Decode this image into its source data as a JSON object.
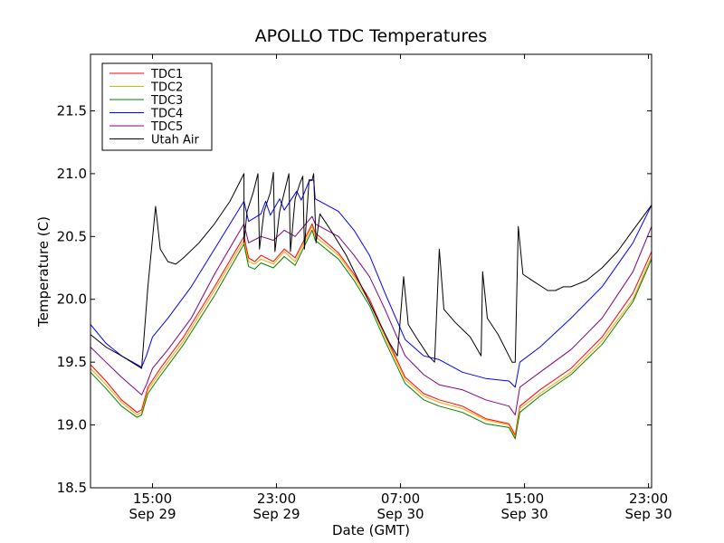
{
  "chart_data": {
    "type": "line",
    "title": "APOLLO TDC Temperatures",
    "xlabel": "Date (GMT)",
    "ylabel": "Temperature (C)",
    "x_unit": "hours since Sep 29 00:00 GMT",
    "xlim": [
      11,
      47.2
    ],
    "ylim": [
      18.5,
      21.95
    ],
    "grid": false,
    "legend_position": "top-left",
    "xticks": [
      {
        "value": 15,
        "label": "15:00",
        "sublabel": "Sep 29"
      },
      {
        "value": 23,
        "label": "23:00",
        "sublabel": "Sep 29"
      },
      {
        "value": 31,
        "label": "07:00",
        "sublabel": "Sep 30"
      },
      {
        "value": 39,
        "label": "15:00",
        "sublabel": "Sep 30"
      },
      {
        "value": 47,
        "label": "23:00",
        "sublabel": "Sep 30"
      }
    ],
    "yticks": [
      {
        "value": 18.5,
        "label": "18.5"
      },
      {
        "value": 19.0,
        "label": "19.0"
      },
      {
        "value": 19.5,
        "label": "19.5"
      },
      {
        "value": 20.0,
        "label": "20.0"
      },
      {
        "value": 20.5,
        "label": "20.5"
      },
      {
        "value": 21.0,
        "label": "21.0"
      },
      {
        "value": 21.5,
        "label": "21.5"
      }
    ],
    "series": [
      {
        "name": "TDC1",
        "color": "#ff0000",
        "points": [
          [
            11,
            19.48
          ],
          [
            12,
            19.35
          ],
          [
            13,
            19.2
          ],
          [
            14,
            19.1
          ],
          [
            14.3,
            19.12
          ],
          [
            14.7,
            19.3
          ],
          [
            15.5,
            19.45
          ],
          [
            17,
            19.7
          ],
          [
            19,
            20.1
          ],
          [
            20.9,
            20.5
          ],
          [
            21.2,
            20.33
          ],
          [
            21.6,
            20.3
          ],
          [
            22,
            20.35
          ],
          [
            22.8,
            20.3
          ],
          [
            23.5,
            20.4
          ],
          [
            24.2,
            20.33
          ],
          [
            25.3,
            20.6
          ],
          [
            25.5,
            20.53
          ],
          [
            27,
            20.37
          ],
          [
            28,
            20.2
          ],
          [
            29,
            20.0
          ],
          [
            30,
            19.72
          ],
          [
            31.3,
            19.38
          ],
          [
            32.5,
            19.25
          ],
          [
            33.5,
            19.2
          ],
          [
            35,
            19.15
          ],
          [
            36.5,
            19.05
          ],
          [
            38,
            19.01
          ],
          [
            38.4,
            18.92
          ],
          [
            38.7,
            19.15
          ],
          [
            40,
            19.28
          ],
          [
            42,
            19.45
          ],
          [
            44,
            19.7
          ],
          [
            46,
            20.05
          ],
          [
            47.2,
            20.38
          ]
        ]
      },
      {
        "name": "TDC2",
        "color": "#ffa500",
        "points": [
          [
            11,
            19.45
          ],
          [
            12,
            19.32
          ],
          [
            13,
            19.18
          ],
          [
            14,
            19.08
          ],
          [
            14.3,
            19.1
          ],
          [
            14.7,
            19.28
          ],
          [
            15.5,
            19.42
          ],
          [
            17,
            19.67
          ],
          [
            19,
            20.07
          ],
          [
            20.9,
            20.47
          ],
          [
            21.2,
            20.3
          ],
          [
            21.6,
            20.28
          ],
          [
            22,
            20.32
          ],
          [
            22.8,
            20.28
          ],
          [
            23.5,
            20.38
          ],
          [
            24.2,
            20.3
          ],
          [
            25.3,
            20.58
          ],
          [
            25.5,
            20.5
          ],
          [
            27,
            20.35
          ],
          [
            28,
            20.18
          ],
          [
            29,
            19.98
          ],
          [
            30,
            19.7
          ],
          [
            31.3,
            19.36
          ],
          [
            32.5,
            19.23
          ],
          [
            33.5,
            19.18
          ],
          [
            35,
            19.13
          ],
          [
            36.5,
            19.04
          ],
          [
            38,
            19.0
          ],
          [
            38.4,
            18.9
          ],
          [
            38.7,
            19.13
          ],
          [
            40,
            19.25
          ],
          [
            42,
            19.42
          ],
          [
            44,
            19.67
          ],
          [
            46,
            20.0
          ],
          [
            47.2,
            20.34
          ]
        ]
      },
      {
        "name": "TDC3",
        "color": "#008000",
        "points": [
          [
            11,
            19.42
          ],
          [
            12,
            19.29
          ],
          [
            13,
            19.15
          ],
          [
            14,
            19.06
          ],
          [
            14.3,
            19.08
          ],
          [
            14.7,
            19.25
          ],
          [
            15.5,
            19.39
          ],
          [
            17,
            19.64
          ],
          [
            19,
            20.03
          ],
          [
            20.9,
            20.44
          ],
          [
            21.2,
            20.26
          ],
          [
            21.6,
            20.24
          ],
          [
            22,
            20.29
          ],
          [
            22.8,
            20.25
          ],
          [
            23.5,
            20.34
          ],
          [
            24.2,
            20.27
          ],
          [
            25.3,
            20.55
          ],
          [
            25.5,
            20.47
          ],
          [
            27,
            20.32
          ],
          [
            28,
            20.15
          ],
          [
            29,
            19.95
          ],
          [
            30,
            19.67
          ],
          [
            31.3,
            19.33
          ],
          [
            32.5,
            19.2
          ],
          [
            33.5,
            19.15
          ],
          [
            35,
            19.1
          ],
          [
            36.5,
            19.01
          ],
          [
            38,
            18.98
          ],
          [
            38.4,
            18.89
          ],
          [
            38.7,
            19.1
          ],
          [
            40,
            19.23
          ],
          [
            42,
            19.4
          ],
          [
            44,
            19.64
          ],
          [
            46,
            19.98
          ],
          [
            47.2,
            20.32
          ]
        ]
      },
      {
        "name": "TDC4",
        "color": "#0000ff",
        "points": [
          [
            11,
            19.8
          ],
          [
            12,
            19.65
          ],
          [
            13,
            19.55
          ],
          [
            14.3,
            19.46
          ],
          [
            14.6,
            19.55
          ],
          [
            15,
            19.7
          ],
          [
            16,
            19.85
          ],
          [
            17.5,
            20.1
          ],
          [
            19,
            20.4
          ],
          [
            20.9,
            20.78
          ],
          [
            21.2,
            20.62
          ],
          [
            22,
            20.68
          ],
          [
            22.3,
            20.78
          ],
          [
            22.6,
            20.67
          ],
          [
            23.2,
            20.8
          ],
          [
            23.5,
            20.71
          ],
          [
            24.3,
            20.86
          ],
          [
            24.6,
            20.79
          ],
          [
            25.1,
            20.94
          ],
          [
            25.4,
            20.95
          ],
          [
            25.5,
            20.8
          ],
          [
            27,
            20.7
          ],
          [
            28,
            20.55
          ],
          [
            29,
            20.35
          ],
          [
            30,
            20.05
          ],
          [
            31.3,
            19.68
          ],
          [
            32.5,
            19.55
          ],
          [
            33.5,
            19.52
          ],
          [
            35,
            19.42
          ],
          [
            36.5,
            19.37
          ],
          [
            38,
            19.35
          ],
          [
            38.4,
            19.3
          ],
          [
            38.7,
            19.5
          ],
          [
            40,
            19.62
          ],
          [
            42,
            19.85
          ],
          [
            44,
            20.1
          ],
          [
            46,
            20.45
          ],
          [
            47.2,
            20.75
          ]
        ]
      },
      {
        "name": "TDC5",
        "color": "#800080",
        "points": [
          [
            11,
            19.62
          ],
          [
            12,
            19.5
          ],
          [
            13,
            19.38
          ],
          [
            14.3,
            19.24
          ],
          [
            14.6,
            19.32
          ],
          [
            15,
            19.45
          ],
          [
            16,
            19.6
          ],
          [
            17.5,
            19.85
          ],
          [
            19,
            20.2
          ],
          [
            20.9,
            20.6
          ],
          [
            21.2,
            20.45
          ],
          [
            22,
            20.5
          ],
          [
            22.8,
            20.47
          ],
          [
            23.5,
            20.55
          ],
          [
            24.2,
            20.5
          ],
          [
            25.3,
            20.66
          ],
          [
            25.5,
            20.6
          ],
          [
            27,
            20.5
          ],
          [
            28,
            20.35
          ],
          [
            29,
            20.18
          ],
          [
            30,
            19.92
          ],
          [
            31.3,
            19.55
          ],
          [
            32.5,
            19.4
          ],
          [
            33.5,
            19.32
          ],
          [
            35,
            19.28
          ],
          [
            36.5,
            19.2
          ],
          [
            38,
            19.15
          ],
          [
            38.4,
            19.08
          ],
          [
            38.7,
            19.3
          ],
          [
            40,
            19.42
          ],
          [
            42,
            19.6
          ],
          [
            44,
            19.85
          ],
          [
            46,
            20.22
          ],
          [
            47.2,
            20.58
          ]
        ]
      },
      {
        "name": "Utah Air",
        "color": "#000000",
        "points": [
          [
            11,
            19.72
          ],
          [
            12,
            19.62
          ],
          [
            13,
            19.55
          ],
          [
            14.3,
            19.45
          ],
          [
            14.7,
            20.1
          ],
          [
            15.2,
            20.74
          ],
          [
            15.5,
            20.4
          ],
          [
            16,
            20.3
          ],
          [
            16.5,
            20.28
          ],
          [
            17,
            20.33
          ],
          [
            18,
            20.45
          ],
          [
            19,
            20.6
          ],
          [
            20,
            20.78
          ],
          [
            20.9,
            21.0
          ],
          [
            20.9,
            20.45
          ],
          [
            21.1,
            20.7
          ],
          [
            21.5,
            20.85
          ],
          [
            21.8,
            21.0
          ],
          [
            21.9,
            20.4
          ],
          [
            22.2,
            20.7
          ],
          [
            22.6,
            20.85
          ],
          [
            22.8,
            21.01
          ],
          [
            22.9,
            20.38
          ],
          [
            23.2,
            20.7
          ],
          [
            23.5,
            20.85
          ],
          [
            23.8,
            21.0
          ],
          [
            23.9,
            20.38
          ],
          [
            24.2,
            20.8
          ],
          [
            24.5,
            20.92
          ],
          [
            24.7,
            20.98
          ],
          [
            24.8,
            20.4
          ],
          [
            25.1,
            20.95
          ],
          [
            25.3,
            20.95
          ],
          [
            25.4,
            21.0
          ],
          [
            25.55,
            20.45
          ],
          [
            25.8,
            20.68
          ],
          [
            26.5,
            20.55
          ],
          [
            27.5,
            20.35
          ],
          [
            28.5,
            20.1
          ],
          [
            29.5,
            19.85
          ],
          [
            30.3,
            19.65
          ],
          [
            30.8,
            19.55
          ],
          [
            31.2,
            20.18
          ],
          [
            31.5,
            19.8
          ],
          [
            32,
            19.7
          ],
          [
            32.8,
            19.55
          ],
          [
            33.2,
            19.5
          ],
          [
            33.5,
            20.4
          ],
          [
            33.8,
            19.92
          ],
          [
            34.5,
            19.82
          ],
          [
            35.5,
            19.7
          ],
          [
            36.2,
            19.55
          ],
          [
            36.3,
            20.22
          ],
          [
            36.6,
            19.85
          ],
          [
            37.3,
            19.72
          ],
          [
            38.2,
            19.5
          ],
          [
            38.4,
            19.5
          ],
          [
            38.6,
            20.58
          ],
          [
            38.9,
            20.2
          ],
          [
            39.5,
            20.15
          ],
          [
            40.5,
            20.07
          ],
          [
            41,
            20.07
          ],
          [
            41.5,
            20.1
          ],
          [
            42,
            20.1
          ],
          [
            43,
            20.15
          ],
          [
            44,
            20.25
          ],
          [
            45,
            20.38
          ],
          [
            46,
            20.55
          ],
          [
            47.2,
            20.75
          ]
        ]
      }
    ]
  }
}
